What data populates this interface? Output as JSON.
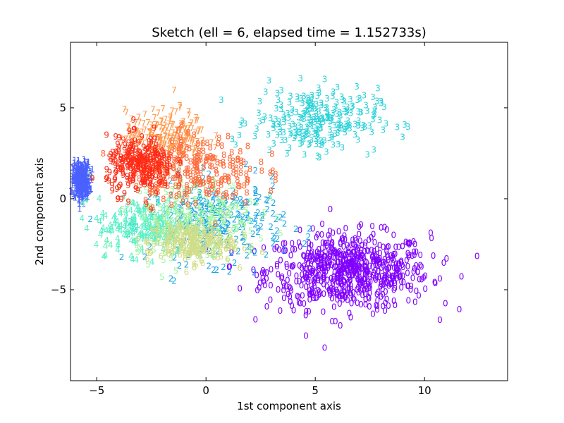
{
  "chart_data": {
    "type": "scatter",
    "title": "Sketch (ell = 6, elapsed time  = 1.152733s)",
    "xlabel": "1st component axis",
    "ylabel": "2nd component axis",
    "xlim": [
      -6.2,
      13.8
    ],
    "ylim": [
      -10.0,
      8.6
    ],
    "xticks": [
      -5,
      0,
      5,
      10
    ],
    "yticks": [
      5,
      0,
      -5
    ],
    "xtick_labels": [
      "−5",
      "0",
      "5",
      "10"
    ],
    "ytick_labels": [
      "5",
      "0",
      "−5"
    ],
    "grid": false,
    "legend": "none",
    "marker": "digit glyph",
    "series": [
      {
        "name": "0",
        "color": "#8000ff",
        "center": [
          6.5,
          -4.0
        ],
        "spread": [
          3.4,
          1.9
        ],
        "count": 700
      },
      {
        "name": "1",
        "color": "#4a61ff",
        "center": [
          -5.7,
          1.0
        ],
        "spread": [
          0.35,
          0.9
        ],
        "count": 350
      },
      {
        "name": "2",
        "color": "#1ba6e6",
        "center": [
          0.5,
          -1.3
        ],
        "spread": [
          2.8,
          2.0
        ],
        "count": 260
      },
      {
        "name": "3",
        "color": "#2ad2d8",
        "center": [
          5.0,
          4.3
        ],
        "spread": [
          2.6,
          1.6
        ],
        "count": 260
      },
      {
        "name": "4",
        "color": "#5cf0c7",
        "center": [
          -2.8,
          -1.5
        ],
        "spread": [
          2.0,
          1.4
        ],
        "count": 220
      },
      {
        "name": "5",
        "color": "#a2f6a2",
        "center": [
          -0.5,
          -1.0
        ],
        "spread": [
          2.6,
          2.0
        ],
        "count": 220
      },
      {
        "name": "6",
        "color": "#d0dd88",
        "center": [
          -0.7,
          -2.4
        ],
        "spread": [
          1.8,
          1.0
        ],
        "count": 220
      },
      {
        "name": "7",
        "color": "#ff9a4e",
        "center": [
          -1.8,
          3.4
        ],
        "spread": [
          1.7,
          1.3
        ],
        "count": 220
      },
      {
        "name": "8",
        "color": "#ff6a3a",
        "center": [
          -0.5,
          1.6
        ],
        "spread": [
          2.6,
          1.8
        ],
        "count": 220
      },
      {
        "name": "9",
        "color": "#ff2a14",
        "center": [
          -3.0,
          1.8
        ],
        "spread": [
          1.4,
          1.4
        ],
        "count": 260
      }
    ]
  }
}
